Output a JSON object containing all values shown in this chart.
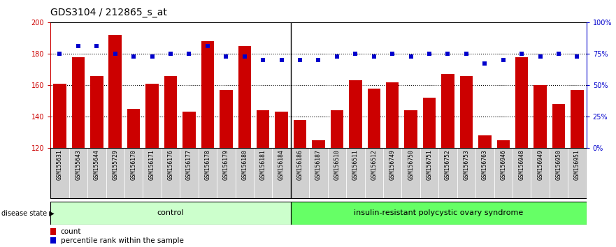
{
  "title": "GDS3104 / 212865_s_at",
  "categories": [
    "GSM155631",
    "GSM155643",
    "GSM155644",
    "GSM155729",
    "GSM156170",
    "GSM156171",
    "GSM156176",
    "GSM156177",
    "GSM156178",
    "GSM156179",
    "GSM156180",
    "GSM156181",
    "GSM156184",
    "GSM156186",
    "GSM156187",
    "GSM156510",
    "GSM156511",
    "GSM156512",
    "GSM156749",
    "GSM156750",
    "GSM156751",
    "GSM156752",
    "GSM156753",
    "GSM156763",
    "GSM156946",
    "GSM156948",
    "GSM156949",
    "GSM156950",
    "GSM156951"
  ],
  "bar_values": [
    161,
    178,
    166,
    192,
    145,
    161,
    166,
    143,
    188,
    157,
    185,
    144,
    143,
    138,
    125,
    144,
    163,
    158,
    162,
    144,
    152,
    167,
    166,
    128,
    125,
    178,
    160,
    148,
    157
  ],
  "percentile_values": [
    75,
    81,
    81,
    75,
    73,
    73,
    75,
    75,
    81,
    73,
    73,
    70,
    70,
    70,
    70,
    73,
    75,
    73,
    75,
    73,
    75,
    75,
    75,
    67,
    70,
    75,
    73,
    75,
    73
  ],
  "bar_color": "#cc0000",
  "percentile_color": "#0000cc",
  "ymin": 120,
  "ymax": 200,
  "yticks_left": [
    120,
    140,
    160,
    180,
    200
  ],
  "yticks_right": [
    0,
    25,
    50,
    75,
    100
  ],
  "control_count": 13,
  "disease_count": 16,
  "control_label": "control",
  "disease_label": "insulin-resistant polycystic ovary syndrome",
  "disease_state_label": "disease state",
  "legend_bar_label": "count",
  "legend_pct_label": "percentile rank within the sample",
  "control_color": "#ccffcc",
  "disease_color": "#66ff66",
  "tick_bg_color": "#d0d0d0",
  "figwidth": 8.81,
  "figheight": 3.54
}
